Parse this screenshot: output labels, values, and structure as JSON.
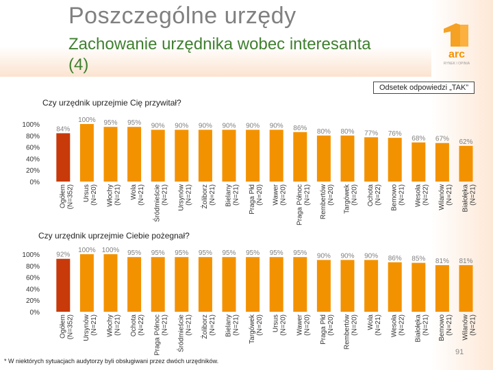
{
  "header": {
    "title": "Poszczególne urzędy",
    "subtitle": "Zachowanie urzędnika wobec interesanta (4)"
  },
  "logo": {
    "text": "arc",
    "tagline": "RYNEK I OPINIA"
  },
  "legend": {
    "label": "Odsetek odpowiedzi „TAK”"
  },
  "colors": {
    "highlight": "#c83a0a",
    "bar": "#f39200",
    "label": "#808080"
  },
  "chart_data": [
    {
      "type": "bar",
      "title": "Czy urzędnik uprzejmie Cię przywitał?",
      "ylim": [
        0,
        100
      ],
      "yticks": [
        "100%",
        "80%",
        "60%",
        "40%",
        "20%",
        "0%"
      ],
      "categories": [
        "Ogółem (N=352)",
        "Ursus (N=20)",
        "Włochy (N=21)",
        "Wola (N=21)",
        "Śródmieście (N=21)",
        "Ursynów (N=21)",
        "Żoliborz (N=21)",
        "Bielany (N=21)",
        "Praga Płd (N=20)",
        "Wawer (N=20)",
        "Praga Północ (N=21)",
        "Rembertów (N=20)",
        "Targówek (N=20)",
        "Ochota (N=22)",
        "Bemowo (N=21)",
        "Wesoła (N=22)",
        "Wilanów (N=21)",
        "Białołęka (N=21)"
      ],
      "values": [
        84,
        100,
        95,
        95,
        90,
        90,
        90,
        90,
        90,
        90,
        86,
        80,
        80,
        77,
        76,
        68,
        67,
        62
      ],
      "value_labels": [
        "84%",
        "100%",
        "95%",
        "95%",
        "90%",
        "90%",
        "90%",
        "90%",
        "90%",
        "90%",
        "86%",
        "80%",
        "80%",
        "77%",
        "76%",
        "68%",
        "67%",
        "62%"
      ]
    },
    {
      "type": "bar",
      "title": "Czy urzędnik uprzejmie Ciebie pożegnał?",
      "ylim": [
        0,
        100
      ],
      "yticks": [
        "100%",
        "80%",
        "60%",
        "40%",
        "20%",
        "0%"
      ],
      "categories": [
        "Ogółem (N=352)",
        "Ursynów (N=21)",
        "Włochy (N=21)",
        "Ochota (N=22)",
        "Praga Północ (N=21)",
        "Śródmieście (N=21)",
        "Żoliborz (N=21)",
        "Bielany (N=21)",
        "Targówek (N=20)",
        "Ursus (N=20)",
        "Wawer (N=20)",
        "Praga Płd (N=20)",
        "Rembertów (N=20)",
        "Wola (N=21)",
        "Wesoła (N=22)",
        "Białołęka (N=21)",
        "Bemowo (N=21)",
        "Wilanów (N=21)"
      ],
      "values": [
        92,
        100,
        100,
        95,
        95,
        95,
        95,
        95,
        95,
        95,
        95,
        90,
        90,
        90,
        86,
        85,
        81,
        81
      ],
      "value_labels": [
        "92%",
        "100%",
        "100%",
        "95%",
        "95%",
        "95%",
        "95%",
        "95%",
        "95%",
        "95%",
        "95%",
        "90%",
        "90%",
        "90%",
        "86%",
        "85%",
        "81%",
        "81%"
      ]
    }
  ],
  "footnote": "* W niektórych sytuacjach audytorzy byli obsługiwani przez dwóch urzędników.",
  "page_number": "91"
}
